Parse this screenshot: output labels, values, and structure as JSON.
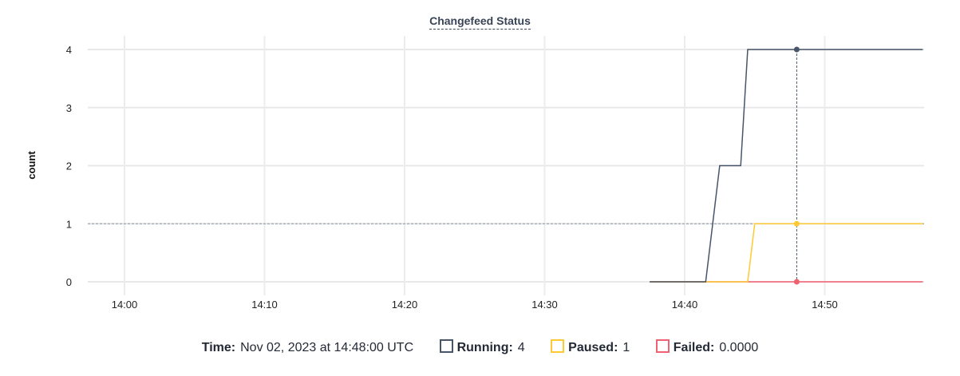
{
  "chart_data": {
    "type": "line",
    "title": "Changefeed Status",
    "ylabel": "count",
    "xlabel": "",
    "ylim": [
      0,
      4
    ],
    "yticks": [
      "0",
      "1",
      "2",
      "3",
      "4"
    ],
    "xticks": [
      "14:00",
      "14:10",
      "14:20",
      "14:30",
      "14:40",
      "14:50"
    ],
    "grid": true,
    "series": [
      {
        "name": "Running",
        "color": "#475569",
        "points": [
          [
            "14:37:30",
            0
          ],
          [
            "14:41:30",
            0
          ],
          [
            "14:42:30",
            2
          ],
          [
            "14:44:00",
            2
          ],
          [
            "14:44:30",
            4
          ],
          [
            "14:57:00",
            4
          ]
        ]
      },
      {
        "name": "Paused",
        "color": "#ffc933",
        "points": [
          [
            "14:37:30",
            0
          ],
          [
            "14:44:30",
            0
          ],
          [
            "14:45:00",
            1
          ],
          [
            "14:57:00",
            1
          ]
        ]
      },
      {
        "name": "Failed",
        "color": "#f06171",
        "points": [
          [
            "14:37:30",
            0
          ],
          [
            "14:57:00",
            0
          ]
        ]
      }
    ],
    "hover": {
      "time": "14:48:00",
      "y": 1
    }
  },
  "legend": {
    "time_label": "Time:",
    "time_value": "Nov 02, 2023 at 14:48:00 UTC",
    "items": [
      {
        "label": "Running:",
        "value": "4"
      },
      {
        "label": "Paused:",
        "value": "1"
      },
      {
        "label": "Failed:",
        "value": "0.0000"
      }
    ]
  }
}
